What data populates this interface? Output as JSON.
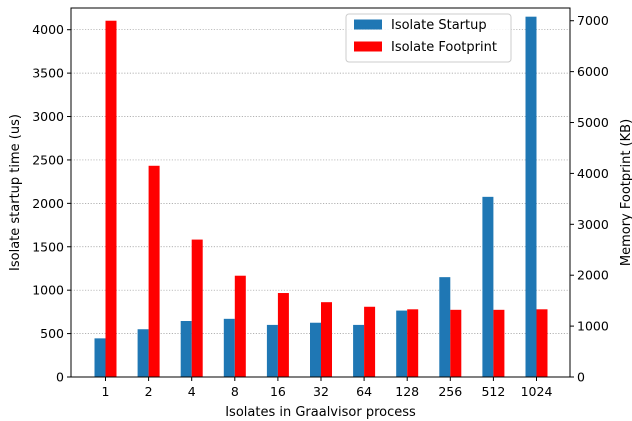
{
  "chart_data": {
    "type": "bar",
    "categories": [
      "1",
      "2",
      "4",
      "8",
      "16",
      "32",
      "64",
      "128",
      "256",
      "512",
      "1024"
    ],
    "series": [
      {
        "name": "Isolate Startup",
        "axis": "left",
        "color": "#1f77b4",
        "values": [
          445,
          550,
          645,
          670,
          600,
          625,
          600,
          765,
          1150,
          2075,
          4150
        ]
      },
      {
        "name": "Isolate Footprint",
        "axis": "right",
        "color": "#ff0000",
        "values": [
          7000,
          4150,
          2700,
          1990,
          1650,
          1470,
          1380,
          1330,
          1320,
          1320,
          1330
        ]
      }
    ],
    "xlabel": "Isolates in Graalvisor process",
    "ylabel": "Isolate startup time (us)",
    "ylabel_right": "Memory Footprint (KB)",
    "ylim": [
      0,
      4250
    ],
    "ylim_right": [
      0,
      7250
    ],
    "yticks": [
      "0",
      "500",
      "1000",
      "1500",
      "2000",
      "2500",
      "3000",
      "3500",
      "4000"
    ],
    "yticks_right": [
      "0",
      "1000",
      "2000",
      "3000",
      "4000",
      "5000",
      "6000",
      "7000"
    ],
    "grid": "horizontal dotted",
    "legend_position": "top-right"
  }
}
